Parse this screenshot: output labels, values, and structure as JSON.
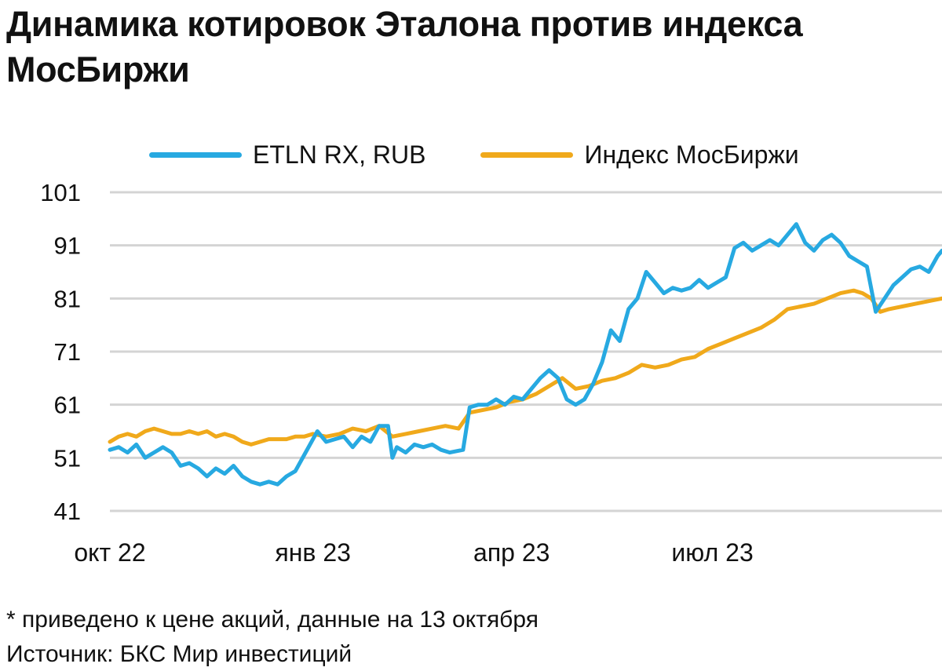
{
  "title": "Динамика котировок Эталона против индекса МосБиржи",
  "footnote": "* приведено к цене акций, данные на 13 октября",
  "source": "Источник: БКС Мир инвестиций",
  "colors": {
    "etln": "#27A9E1",
    "imoex": "#F0A91B",
    "grid": "#D4D4D4"
  },
  "chart_data": {
    "type": "line",
    "title": "Динамика котировок Эталона против индекса МосБиржи",
    "xlabel": "",
    "ylabel": "",
    "ylim": [
      41,
      101
    ],
    "y_ticks": [
      101,
      91,
      81,
      71,
      61,
      51,
      41
    ],
    "x_range": [
      "2022-10-01",
      "2023-10-13"
    ],
    "x_ticks": [
      {
        "date": "2022-10-01",
        "label": "окт 22"
      },
      {
        "date": "2023-01-01",
        "label": "янв 23"
      },
      {
        "date": "2023-04-01",
        "label": "апр 23"
      },
      {
        "date": "2023-07-01",
        "label": "июл 23"
      }
    ],
    "grid": true,
    "legend_position": "top",
    "series": [
      {
        "name": "ETLN RX, RUB",
        "color": "#27A9E1",
        "points": [
          [
            "2022-10-01",
            52.5
          ],
          [
            "2022-10-05",
            53
          ],
          [
            "2022-10-09",
            52
          ],
          [
            "2022-10-13",
            53.5
          ],
          [
            "2022-10-17",
            51
          ],
          [
            "2022-10-21",
            52
          ],
          [
            "2022-10-25",
            53
          ],
          [
            "2022-10-29",
            52
          ],
          [
            "2022-11-02",
            49.5
          ],
          [
            "2022-11-06",
            50
          ],
          [
            "2022-11-10",
            49
          ],
          [
            "2022-11-14",
            47.5
          ],
          [
            "2022-11-18",
            49
          ],
          [
            "2022-11-22",
            48
          ],
          [
            "2022-11-26",
            49.5
          ],
          [
            "2022-11-30",
            47.5
          ],
          [
            "2022-12-04",
            46.5
          ],
          [
            "2022-12-08",
            46
          ],
          [
            "2022-12-12",
            46.5
          ],
          [
            "2022-12-16",
            46
          ],
          [
            "2022-12-20",
            47.5
          ],
          [
            "2022-12-24",
            48.5
          ],
          [
            "2022-12-28",
            51.5
          ],
          [
            "2023-01-01",
            54.5
          ],
          [
            "2023-01-03",
            56
          ],
          [
            "2023-01-07",
            54
          ],
          [
            "2023-01-11",
            54.5
          ],
          [
            "2023-01-15",
            55
          ],
          [
            "2023-01-19",
            53
          ],
          [
            "2023-01-23",
            55
          ],
          [
            "2023-01-27",
            54
          ],
          [
            "2023-01-31",
            57
          ],
          [
            "2023-02-04",
            57
          ],
          [
            "2023-02-06",
            51
          ],
          [
            "2023-02-08",
            53
          ],
          [
            "2023-02-12",
            52
          ],
          [
            "2023-02-16",
            53.5
          ],
          [
            "2023-02-20",
            53
          ],
          [
            "2023-02-24",
            53.5
          ],
          [
            "2023-02-28",
            52.5
          ],
          [
            "2023-03-04",
            52
          ],
          [
            "2023-03-10",
            52.5
          ],
          [
            "2023-03-13",
            60.5
          ],
          [
            "2023-03-17",
            61
          ],
          [
            "2023-03-21",
            61
          ],
          [
            "2023-03-25",
            62
          ],
          [
            "2023-03-29",
            61
          ],
          [
            "2023-04-02",
            62.5
          ],
          [
            "2023-04-06",
            62
          ],
          [
            "2023-04-10",
            64
          ],
          [
            "2023-04-14",
            66
          ],
          [
            "2023-04-18",
            67.5
          ],
          [
            "2023-04-22",
            66
          ],
          [
            "2023-04-26",
            62
          ],
          [
            "2023-04-30",
            61
          ],
          [
            "2023-05-04",
            62
          ],
          [
            "2023-05-08",
            65
          ],
          [
            "2023-05-12",
            69
          ],
          [
            "2023-05-16",
            75
          ],
          [
            "2023-05-20",
            73
          ],
          [
            "2023-05-24",
            79
          ],
          [
            "2023-05-28",
            81
          ],
          [
            "2023-06-01",
            86
          ],
          [
            "2023-06-05",
            84
          ],
          [
            "2023-06-09",
            82
          ],
          [
            "2023-06-13",
            83
          ],
          [
            "2023-06-17",
            82.5
          ],
          [
            "2023-06-21",
            83
          ],
          [
            "2023-06-25",
            84.5
          ],
          [
            "2023-06-29",
            83
          ],
          [
            "2023-07-03",
            84
          ],
          [
            "2023-07-07",
            85
          ],
          [
            "2023-07-11",
            90.5
          ],
          [
            "2023-07-15",
            91.5
          ],
          [
            "2023-07-19",
            90
          ],
          [
            "2023-07-23",
            91
          ],
          [
            "2023-07-27",
            92
          ],
          [
            "2023-07-31",
            91
          ],
          [
            "2023-08-04",
            93
          ],
          [
            "2023-08-08",
            95
          ],
          [
            "2023-08-12",
            91.5
          ],
          [
            "2023-08-16",
            90
          ],
          [
            "2023-08-20",
            92
          ],
          [
            "2023-08-24",
            93
          ],
          [
            "2023-08-28",
            91.5
          ],
          [
            "2023-09-01",
            89
          ],
          [
            "2023-09-05",
            88
          ],
          [
            "2023-09-09",
            87
          ],
          [
            "2023-09-13",
            78.5
          ],
          [
            "2023-09-17",
            81
          ],
          [
            "2023-09-21",
            83.5
          ],
          [
            "2023-09-25",
            85
          ],
          [
            "2023-09-29",
            86.5
          ],
          [
            "2023-10-03",
            87
          ],
          [
            "2023-10-07",
            86
          ],
          [
            "2023-10-11",
            89
          ],
          [
            "2023-10-13",
            90
          ]
        ]
      },
      {
        "name": "Индекс МосБиржи",
        "color": "#F0A91B",
        "points": [
          [
            "2022-10-01",
            54
          ],
          [
            "2022-10-05",
            55
          ],
          [
            "2022-10-09",
            55.5
          ],
          [
            "2022-10-13",
            55
          ],
          [
            "2022-10-17",
            56
          ],
          [
            "2022-10-21",
            56.5
          ],
          [
            "2022-10-25",
            56
          ],
          [
            "2022-10-29",
            55.5
          ],
          [
            "2022-11-02",
            55.5
          ],
          [
            "2022-11-06",
            56
          ],
          [
            "2022-11-10",
            55.5
          ],
          [
            "2022-11-14",
            56
          ],
          [
            "2022-11-18",
            55
          ],
          [
            "2022-11-22",
            55.5
          ],
          [
            "2022-11-26",
            55
          ],
          [
            "2022-11-30",
            54
          ],
          [
            "2022-12-04",
            53.5
          ],
          [
            "2022-12-08",
            54
          ],
          [
            "2022-12-12",
            54.5
          ],
          [
            "2022-12-16",
            54.5
          ],
          [
            "2022-12-20",
            54.5
          ],
          [
            "2022-12-24",
            55
          ],
          [
            "2022-12-28",
            55
          ],
          [
            "2023-01-01",
            55.5
          ],
          [
            "2023-01-07",
            55
          ],
          [
            "2023-01-13",
            55.5
          ],
          [
            "2023-01-19",
            56.5
          ],
          [
            "2023-01-25",
            56
          ],
          [
            "2023-01-31",
            57
          ],
          [
            "2023-02-06",
            55
          ],
          [
            "2023-02-12",
            55.5
          ],
          [
            "2023-02-18",
            56
          ],
          [
            "2023-02-24",
            56.5
          ],
          [
            "2023-03-02",
            57
          ],
          [
            "2023-03-08",
            56.5
          ],
          [
            "2023-03-13",
            59.5
          ],
          [
            "2023-03-19",
            60
          ],
          [
            "2023-03-25",
            60.5
          ],
          [
            "2023-03-31",
            61.5
          ],
          [
            "2023-04-06",
            62
          ],
          [
            "2023-04-12",
            63
          ],
          [
            "2023-04-18",
            64.5
          ],
          [
            "2023-04-24",
            66
          ],
          [
            "2023-04-30",
            64
          ],
          [
            "2023-05-06",
            64.5
          ],
          [
            "2023-05-12",
            65.5
          ],
          [
            "2023-05-18",
            66
          ],
          [
            "2023-05-24",
            67
          ],
          [
            "2023-05-30",
            68.5
          ],
          [
            "2023-06-05",
            68
          ],
          [
            "2023-06-11",
            68.5
          ],
          [
            "2023-06-17",
            69.5
          ],
          [
            "2023-06-23",
            70
          ],
          [
            "2023-06-29",
            71.5
          ],
          [
            "2023-07-05",
            72.5
          ],
          [
            "2023-07-11",
            73.5
          ],
          [
            "2023-07-17",
            74.5
          ],
          [
            "2023-07-23",
            75.5
          ],
          [
            "2023-07-29",
            77
          ],
          [
            "2023-08-04",
            79
          ],
          [
            "2023-08-10",
            79.5
          ],
          [
            "2023-08-16",
            80
          ],
          [
            "2023-08-22",
            81
          ],
          [
            "2023-08-28",
            82
          ],
          [
            "2023-09-03",
            82.5
          ],
          [
            "2023-09-07",
            82
          ],
          [
            "2023-09-11",
            81
          ],
          [
            "2023-09-15",
            78.5
          ],
          [
            "2023-09-19",
            79
          ],
          [
            "2023-09-25",
            79.5
          ],
          [
            "2023-10-01",
            80
          ],
          [
            "2023-10-07",
            80.5
          ],
          [
            "2023-10-13",
            81
          ]
        ]
      }
    ]
  }
}
